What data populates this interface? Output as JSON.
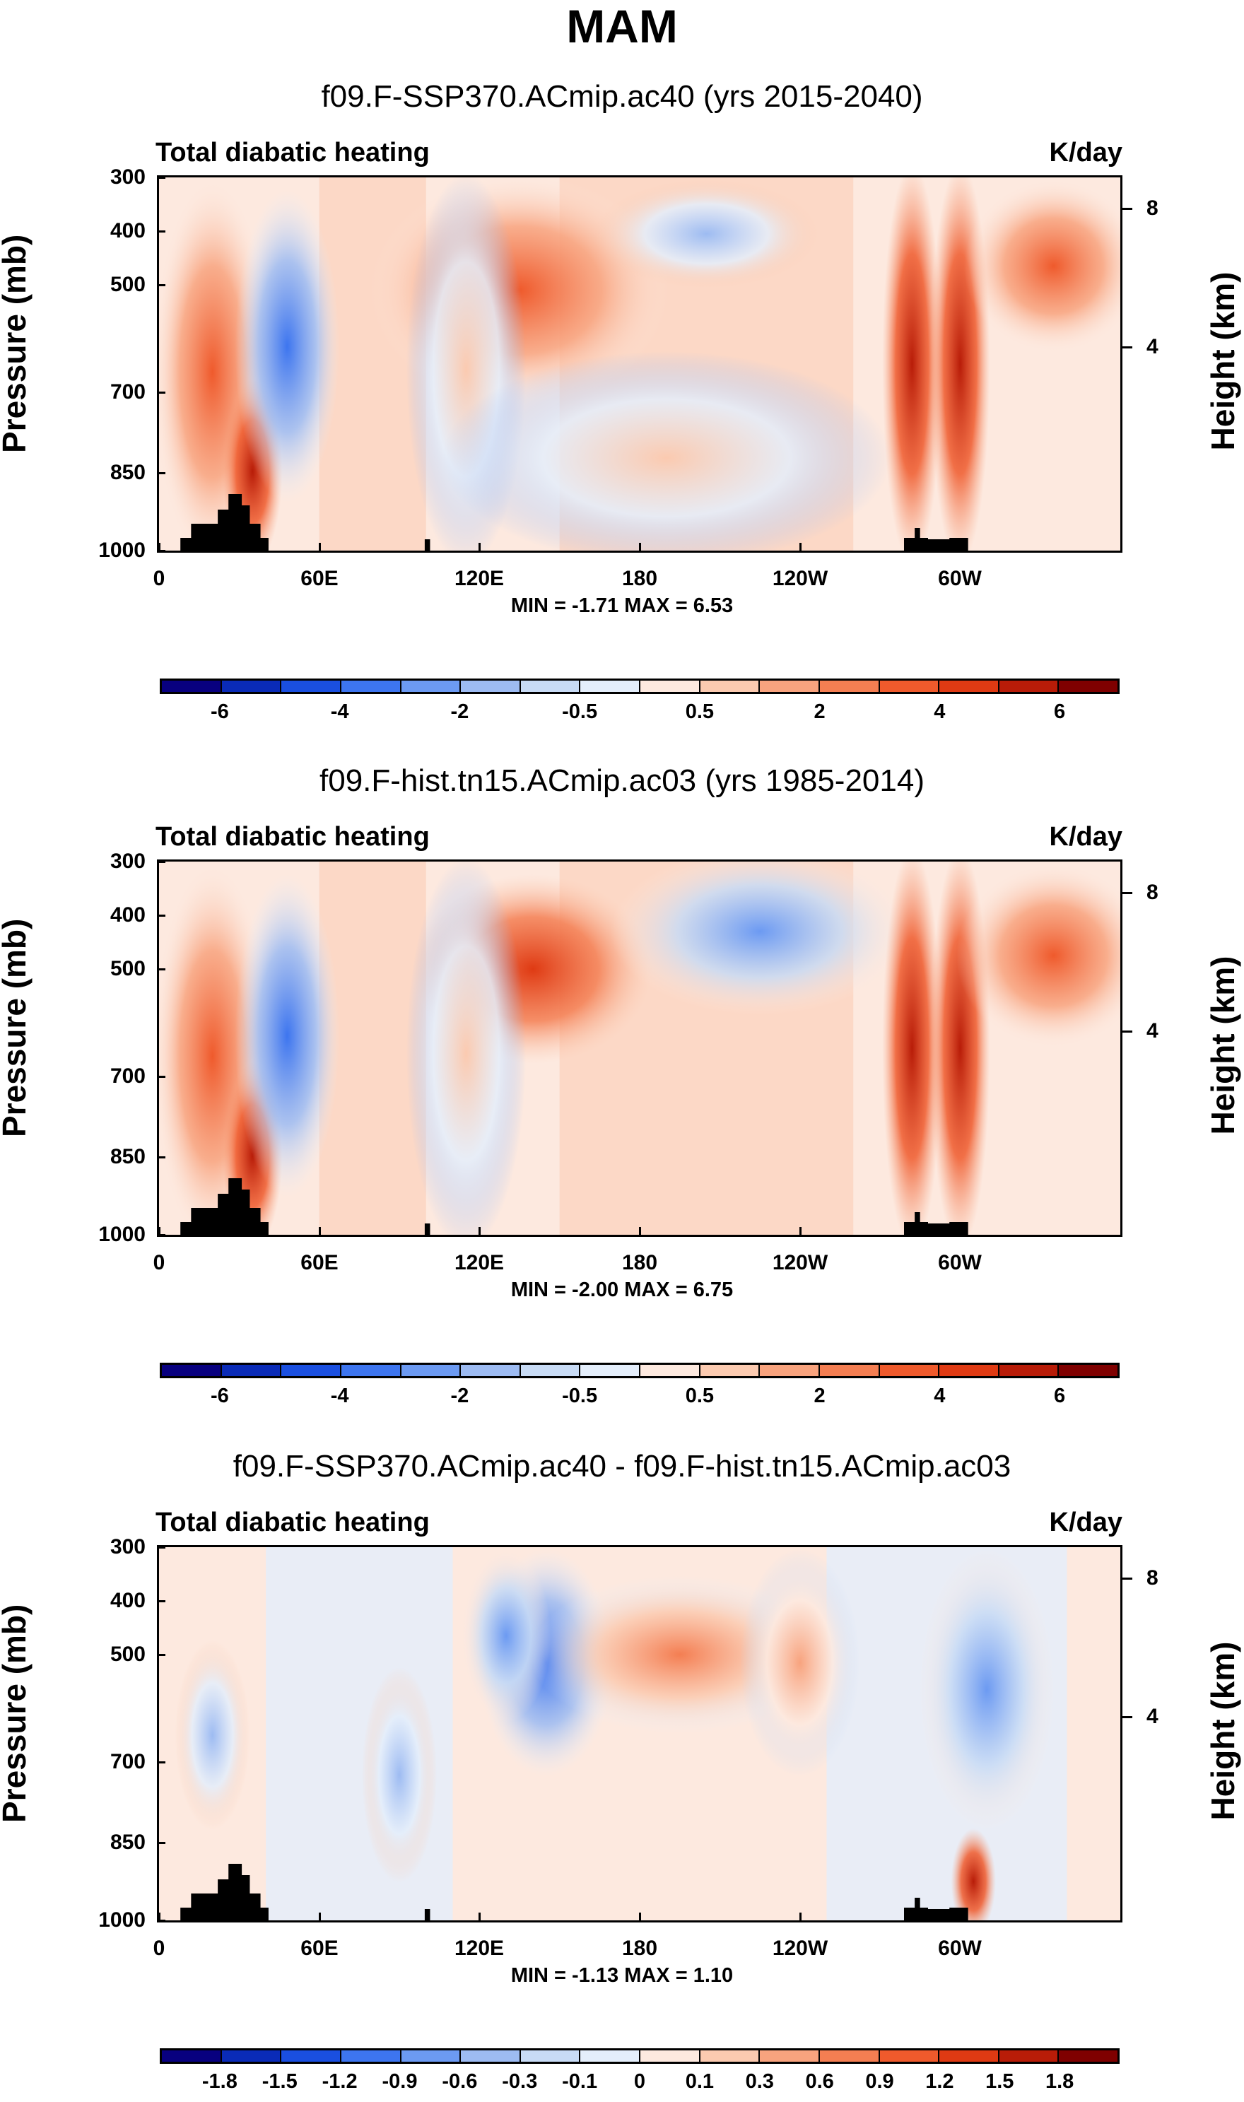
{
  "main_title": "MAM",
  "chart_data": [
    {
      "type": "heatmap",
      "title": "f09.F-SSP370.ACmip.ac40 (yrs 2015-2040)",
      "variable": "Total diabatic heating",
      "units": "K/day",
      "xlabel": "",
      "ylabel": "Pressure (mb)",
      "ylabel_right": "Height (km)",
      "x_ticks": [
        "0",
        "60E",
        "120E",
        "180",
        "120W",
        "60W"
      ],
      "y_ticks": [
        "300",
        "400",
        "500",
        "700",
        "850",
        "1000"
      ],
      "y_right_ticks": [
        "8",
        "4"
      ],
      "min_max_text": "MIN = -1.71  MAX = 6.53",
      "min": -1.71,
      "max": 6.53,
      "colorbar_labels": [
        "-6",
        "-4",
        "-2",
        "-0.5",
        "0.5",
        "2",
        "4",
        "6"
      ],
      "colorbar_colors": [
        "#08007f",
        "#0a2bb7",
        "#1a4fe0",
        "#3d75ef",
        "#6c9af2",
        "#9dbbf2",
        "#c8dbf5",
        "#e4eefb",
        "#fde9df",
        "#fbcab0",
        "#f8a37e",
        "#f47e52",
        "#ef5a2c",
        "#df3a13",
        "#b81c08",
        "#7f0000"
      ],
      "features": [
        {
          "lon": 20,
          "p_top": 330,
          "p_bot": 1000,
          "width": 16,
          "level": 0.78
        },
        {
          "lon": 35,
          "p_top": 700,
          "p_bot": 1000,
          "width": 8,
          "level": 0.95
        },
        {
          "lon": 48,
          "p_top": 350,
          "p_bot": 880,
          "width": 14,
          "level": 0.2
        },
        {
          "lon": 135,
          "p_top": 320,
          "p_bot": 700,
          "width": 40,
          "level": 0.78
        },
        {
          "lon": 115,
          "p_top": 320,
          "p_bot": 1000,
          "width": 16,
          "level": 0.62
        },
        {
          "lon": 205,
          "p_top": 330,
          "p_bot": 480,
          "width": 30,
          "level": 0.35
        },
        {
          "lon": 190,
          "p_top": 650,
          "p_bot": 1000,
          "width": 60,
          "level": 0.6
        },
        {
          "lon": 282,
          "p_top": 300,
          "p_bot": 1000,
          "width": 8,
          "level": 0.92
        },
        {
          "lon": 300,
          "p_top": 300,
          "p_bot": 1000,
          "width": 8,
          "level": 0.9
        },
        {
          "lon": 335,
          "p_top": 330,
          "p_bot": 600,
          "width": 24,
          "level": 0.8
        }
      ]
    },
    {
      "type": "heatmap",
      "title": "f09.F-hist.tn15.ACmip.ac03 (yrs 1985-2014)",
      "variable": "Total diabatic heating",
      "units": "K/day",
      "xlabel": "",
      "ylabel": "Pressure (mb)",
      "ylabel_right": "Height (km)",
      "x_ticks": [
        "0",
        "60E",
        "120E",
        "180",
        "120W",
        "60W"
      ],
      "y_ticks": [
        "300",
        "400",
        "500",
        "700",
        "850",
        "1000"
      ],
      "y_right_ticks": [
        "8",
        "4"
      ],
      "min_max_text": "MIN = -2.00  MAX = 6.75",
      "min": -2.0,
      "max": 6.75,
      "colorbar_labels": [
        "-6",
        "-4",
        "-2",
        "-0.5",
        "0.5",
        "2",
        "4",
        "6"
      ],
      "colorbar_colors": [
        "#08007f",
        "#0a2bb7",
        "#1a4fe0",
        "#3d75ef",
        "#6c9af2",
        "#9dbbf2",
        "#c8dbf5",
        "#e4eefb",
        "#fde9df",
        "#fbcab0",
        "#f8a37e",
        "#f47e52",
        "#ef5a2c",
        "#df3a13",
        "#b81c08",
        "#7f0000"
      ],
      "features": [
        {
          "lon": 20,
          "p_top": 330,
          "p_bot": 1000,
          "width": 16,
          "level": 0.78
        },
        {
          "lon": 35,
          "p_top": 700,
          "p_bot": 1000,
          "width": 8,
          "level": 0.95
        },
        {
          "lon": 48,
          "p_top": 350,
          "p_bot": 900,
          "width": 14,
          "level": 0.18
        },
        {
          "lon": 140,
          "p_top": 350,
          "p_bot": 650,
          "width": 32,
          "level": 0.86
        },
        {
          "lon": 115,
          "p_top": 320,
          "p_bot": 1000,
          "width": 16,
          "level": 0.62
        },
        {
          "lon": 225,
          "p_top": 300,
          "p_bot": 560,
          "width": 40,
          "level": 0.25
        },
        {
          "lon": 282,
          "p_top": 300,
          "p_bot": 1000,
          "width": 8,
          "level": 0.92
        },
        {
          "lon": 300,
          "p_top": 300,
          "p_bot": 1000,
          "width": 8,
          "level": 0.9
        },
        {
          "lon": 335,
          "p_top": 330,
          "p_bot": 620,
          "width": 26,
          "level": 0.82
        }
      ]
    },
    {
      "type": "heatmap",
      "title": "f09.F-SSP370.ACmip.ac40 - f09.F-hist.tn15.ACmip.ac03",
      "variable": "Total diabatic heating",
      "units": "K/day",
      "xlabel": "",
      "ylabel": "Pressure (mb)",
      "ylabel_right": "Height (km)",
      "x_ticks": [
        "0",
        "60E",
        "120E",
        "180",
        "120W",
        "60W"
      ],
      "y_ticks": [
        "300",
        "400",
        "500",
        "700",
        "850",
        "1000"
      ],
      "y_right_ticks": [
        "8",
        "4"
      ],
      "min_max_text": "MIN = -1.13  MAX = 1.10",
      "min": -1.13,
      "max": 1.1,
      "colorbar_labels": [
        "-1.8",
        "-1.5",
        "-1.2",
        "-0.9",
        "-0.6",
        "-0.3",
        "-0.1",
        "0",
        "0.1",
        "0.3",
        "0.6",
        "0.9",
        "1.2",
        "1.5",
        "1.8"
      ],
      "colorbar_colors": [
        "#08007f",
        "#0a2bb7",
        "#1a4fe0",
        "#3d75ef",
        "#6c9af2",
        "#9dbbf2",
        "#c8dbf5",
        "#e4eefb",
        "#fde9df",
        "#fbcab0",
        "#f8a37e",
        "#f47e52",
        "#ef5a2c",
        "#df3a13",
        "#b81c08",
        "#7f0000"
      ],
      "features": [
        {
          "lon": 145,
          "p_top": 330,
          "p_bot": 700,
          "width": 18,
          "level": 0.2
        },
        {
          "lon": 130,
          "p_top": 330,
          "p_bot": 600,
          "width": 12,
          "level": 0.25
        },
        {
          "lon": 195,
          "p_top": 380,
          "p_bot": 620,
          "width": 40,
          "level": 0.72
        },
        {
          "lon": 240,
          "p_top": 330,
          "p_bot": 700,
          "width": 16,
          "level": 0.68
        },
        {
          "lon": 310,
          "p_top": 330,
          "p_bot": 800,
          "width": 18,
          "level": 0.25
        },
        {
          "lon": 305,
          "p_top": 850,
          "p_bot": 1000,
          "width": 6,
          "level": 0.9
        },
        {
          "lon": 20,
          "p_top": 500,
          "p_bot": 800,
          "width": 10,
          "level": 0.35
        },
        {
          "lon": 90,
          "p_top": 550,
          "p_bot": 900,
          "width": 10,
          "level": 0.35
        }
      ]
    }
  ]
}
